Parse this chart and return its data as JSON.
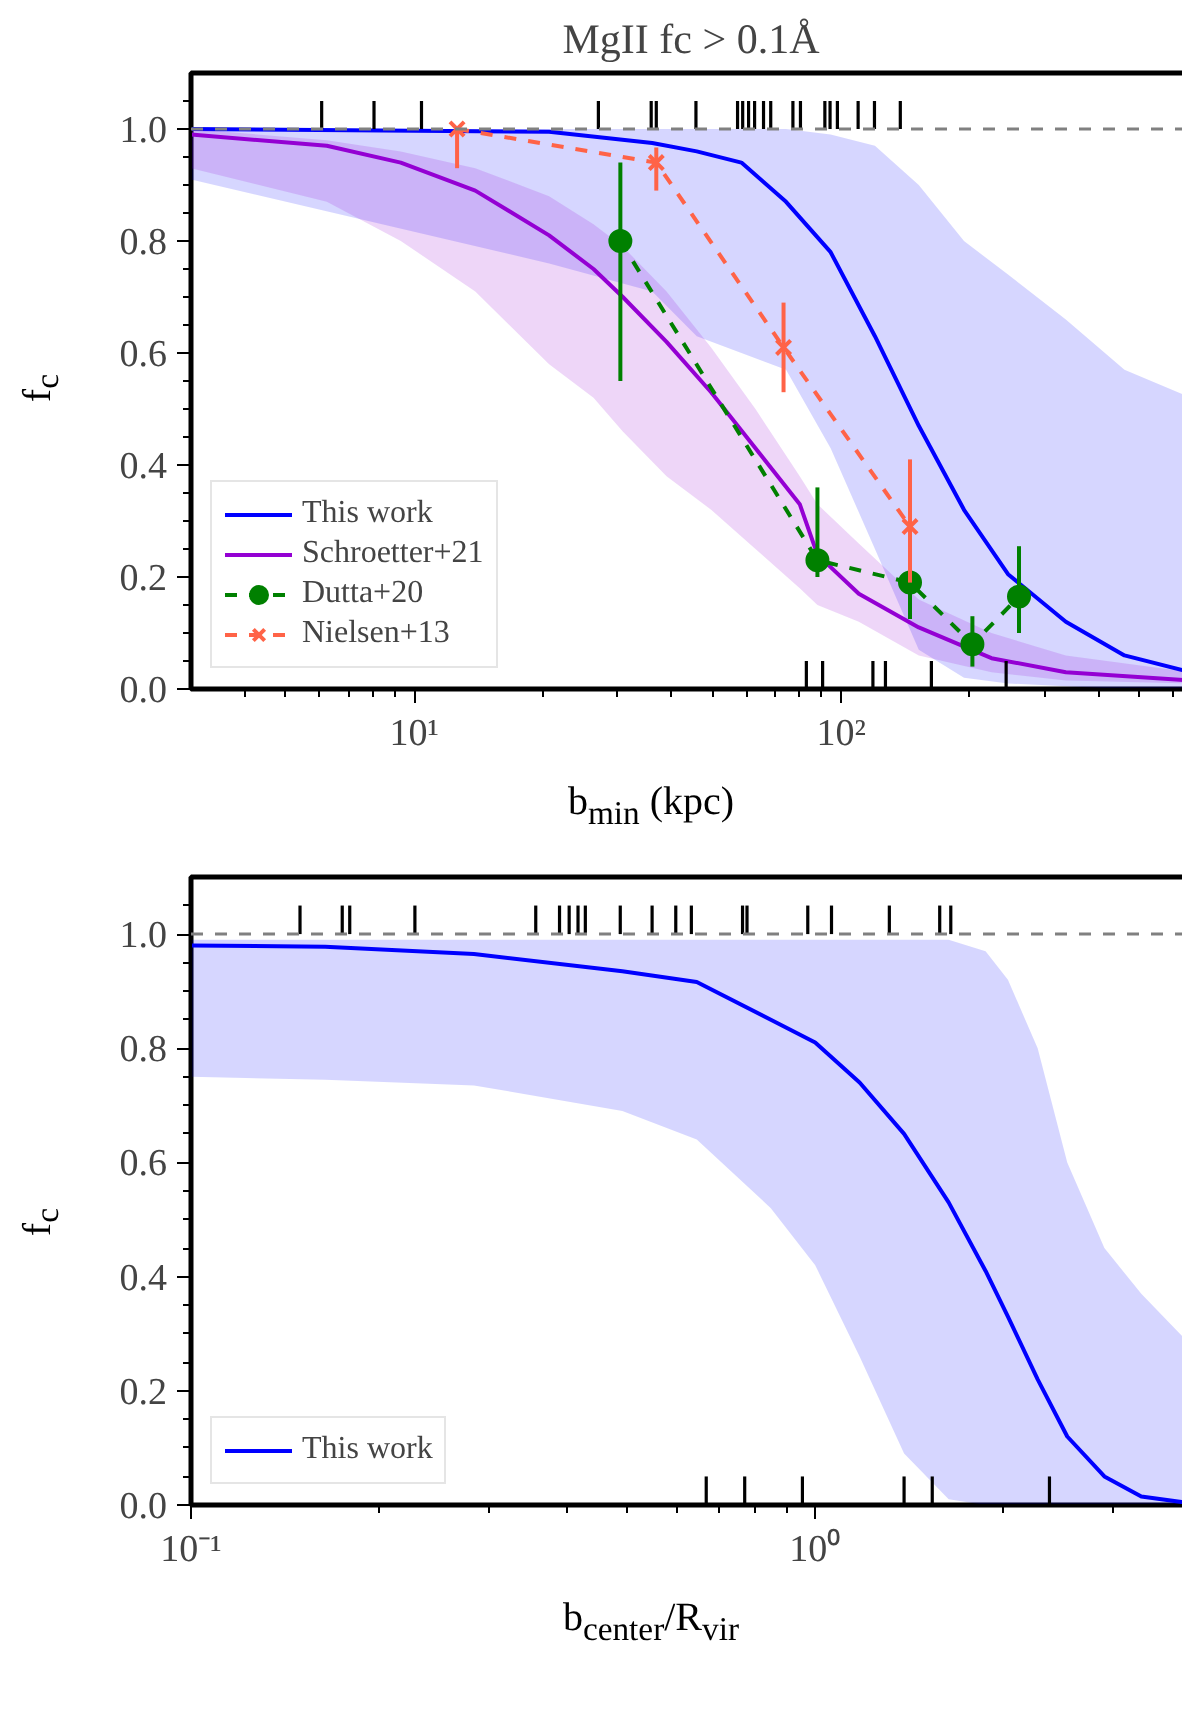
{
  "chart_data": [
    {
      "type": "line",
      "title": "MgII fc > 0.1Å",
      "xlabel": "b$_{min}$ (kpc)",
      "ylabel": "f$_{c}$",
      "log": "x",
      "grid": false,
      "legend": "bottom left",
      "xlim": [
        3,
        660
      ],
      "ylim": [
        0,
        1.1
      ],
      "xticks": [
        {
          "value": 10,
          "label": "10¹"
        },
        {
          "value": 100,
          "label": "10²"
        },
        {
          "value": 4,
          "label": null
        },
        {
          "value": 5,
          "label": null
        },
        {
          "value": 6,
          "label": null
        },
        {
          "value": 7,
          "label": null
        },
        {
          "value": 8,
          "label": null
        },
        {
          "value": 9,
          "label": null
        },
        {
          "value": 20,
          "label": null
        },
        {
          "value": 30,
          "label": null
        },
        {
          "value": 40,
          "label": null
        },
        {
          "value": 50,
          "label": null
        },
        {
          "value": 60,
          "label": null
        },
        {
          "value": 70,
          "label": null
        },
        {
          "value": 80,
          "label": null
        },
        {
          "value": 90,
          "label": null
        },
        {
          "value": 200,
          "label": null
        },
        {
          "value": 300,
          "label": null
        },
        {
          "value": 400,
          "label": null
        },
        {
          "value": 500,
          "label": null
        },
        {
          "value": 600,
          "label": null
        }
      ],
      "yticks": [
        {
          "value": 0,
          "label": "0.0"
        },
        {
          "value": 0.2,
          "label": "0.2"
        },
        {
          "value": 0.4,
          "label": "0.4"
        },
        {
          "value": 0.6,
          "label": "0.6"
        },
        {
          "value": 0.8,
          "label": "0.8"
        },
        {
          "value": 1.0,
          "label": "1.0"
        },
        {
          "value": 0.05,
          "label": null
        },
        {
          "value": 0.1,
          "label": null
        },
        {
          "value": 0.15,
          "label": null
        },
        {
          "value": 0.25,
          "label": null
        },
        {
          "value": 0.3,
          "label": null
        },
        {
          "value": 0.35,
          "label": null
        },
        {
          "value": 0.45,
          "label": null
        },
        {
          "value": 0.5,
          "label": null
        },
        {
          "value": 0.55,
          "label": null
        },
        {
          "value": 0.65,
          "label": null
        },
        {
          "value": 0.7,
          "label": null
        },
        {
          "value": 0.75,
          "label": null
        },
        {
          "value": 0.85,
          "label": null
        },
        {
          "value": 0.9,
          "label": null
        },
        {
          "value": 0.95,
          "label": null
        },
        {
          "value": 1.05,
          "label": null
        }
      ],
      "ref_lines": [
        {
          "axis": "y",
          "value": 1.0,
          "color": "#808080",
          "line_style": "dashed"
        }
      ],
      "series": [
        {
          "name": "This work",
          "color": "#0000ff",
          "x": [
            3,
            20.7,
            36.1,
            45.9,
            58.4,
            74.3,
            94.5,
            120,
            152,
            194,
            246,
            336,
            461,
            660
          ],
          "values": [
            1.0,
            0.995,
            0.975,
            0.96,
            0.94,
            0.87,
            0.78,
            0.63,
            0.47,
            0.32,
            0.205,
            0.12,
            0.06,
            0.03
          ],
          "upper": [
            1.0,
            1.0,
            1.0,
            1.0,
            1.0,
            1.0,
            0.99,
            0.97,
            0.9,
            0.8,
            0.74,
            0.66,
            0.57,
            0.52
          ],
          "lower": [
            0.91,
            0.76,
            0.71,
            0.63,
            0.6,
            0.57,
            0.43,
            0.25,
            0.07,
            0.02,
            0.01,
            0.005,
            0.0,
            0.0
          ]
        },
        {
          "name": "Schroetter+21",
          "color": "#9400d3",
          "x": [
            3,
            6.24,
            9.3,
            13.9,
            20.7,
            26.3,
            30.8,
            39,
            49.6,
            63,
            80,
            88,
            110,
            152,
            225,
            336,
            660
          ],
          "values": [
            0.99,
            0.97,
            0.94,
            0.89,
            0.81,
            0.75,
            0.7,
            0.62,
            0.53,
            0.43,
            0.33,
            0.24,
            0.17,
            0.11,
            0.055,
            0.03,
            0.015
          ],
          "upper": [
            1.0,
            0.98,
            0.96,
            0.93,
            0.88,
            0.83,
            0.79,
            0.71,
            0.61,
            0.5,
            0.38,
            0.33,
            0.26,
            0.16,
            0.1,
            0.06,
            0.03
          ],
          "lower": [
            0.93,
            0.87,
            0.8,
            0.71,
            0.58,
            0.52,
            0.46,
            0.38,
            0.32,
            0.25,
            0.18,
            0.15,
            0.12,
            0.06,
            0.03,
            0.015,
            0.01
          ]
        },
        {
          "name": "Dutta+20",
          "color": "#008000",
          "marker": "circle",
          "line_style": "dashed",
          "x": [
            30.4,
            88,
            145,
            203,
            261
          ],
          "values": [
            0.8,
            0.23,
            0.19,
            0.08,
            0.165
          ],
          "errors": [
            [
              0.55,
              0.94
            ],
            [
              0.2,
              0.36
            ],
            [
              0.125,
              0.305
            ],
            [
              0.04,
              0.13
            ],
            [
              0.1,
              0.255
            ]
          ]
        },
        {
          "name": "Nielsen+13",
          "color": "#ff6347",
          "marker": "cross",
          "line_style": "dashed",
          "x": [
            12.6,
            36.9,
            73.3,
            145
          ],
          "values": [
            1.0,
            0.94,
            0.61,
            0.29
          ],
          "errors": [
            [
              0.93,
              1.0
            ],
            [
              0.89,
              0.967
            ],
            [
              0.53,
              0.69
            ],
            [
              0.19,
              0.41
            ]
          ]
        },
        {
          "type": "bar",
          "color": "#000000",
          "x": [
            6.07,
            8.05,
            10.4,
            27.0,
            35.9,
            36.9,
            45.7,
            57.2,
            58.8,
            60.7,
            62.7,
            65.8,
            68.4,
            77.1,
            80.3,
            91.6,
            94.2,
            98.0,
            109.6,
            119.7,
            137.6
          ],
          "base": [
            1.0,
            1.0,
            1.0,
            1.0,
            1.0,
            1.0,
            1.0,
            1.0,
            1.0,
            1.0,
            1.0,
            1.0,
            1.0,
            1.0,
            1.0,
            1.0,
            1.0,
            1.0,
            1.0,
            1.0,
            1.0
          ],
          "values": [
            0.05,
            0.05,
            0.05,
            0.05,
            0.05,
            0.05,
            0.05,
            0.05,
            0.05,
            0.05,
            0.05,
            0.05,
            0.05,
            0.05,
            0.05,
            0.05,
            0.05,
            0.05,
            0.05,
            0.05,
            0.05
          ]
        },
        {
          "type": "bar",
          "color": "#000000",
          "x": [
            82.9,
            90.5,
            118.7,
            127,
            162.7,
            243.5
          ],
          "values": [
            0.05,
            0.05,
            0.05,
            0.05,
            0.05,
            0.05
          ]
        }
      ]
    },
    {
      "type": "line",
      "xlabel": "b$_{center}$/R$_{vir}$",
      "ylabel": "f$_{c}$",
      "log": "x",
      "grid": false,
      "legend": "bottom left",
      "xlim": [
        0.1,
        4
      ],
      "ylim": [
        0,
        1.1
      ],
      "xticks": [
        {
          "value": 0.1,
          "label": "10⁻¹"
        },
        {
          "value": 1,
          "label": "10⁰"
        },
        {
          "value": 0.2,
          "label": null
        },
        {
          "value": 0.3,
          "label": null
        },
        {
          "value": 0.4,
          "label": null
        },
        {
          "value": 0.5,
          "label": null
        },
        {
          "value": 0.6,
          "label": null
        },
        {
          "value": 0.7,
          "label": null
        },
        {
          "value": 0.8,
          "label": null
        },
        {
          "value": 0.9,
          "label": null
        },
        {
          "value": 2,
          "label": null
        },
        {
          "value": 3,
          "label": null
        },
        {
          "value": 4,
          "label": null
        }
      ],
      "yticks": [
        {
          "value": 0,
          "label": "0.0"
        },
        {
          "value": 0.2,
          "label": "0.2"
        },
        {
          "value": 0.4,
          "label": "0.4"
        },
        {
          "value": 0.6,
          "label": "0.6"
        },
        {
          "value": 0.8,
          "label": "0.8"
        },
        {
          "value": 1.0,
          "label": "1.0"
        },
        {
          "value": 0.05,
          "label": null
        },
        {
          "value": 0.1,
          "label": null
        },
        {
          "value": 0.15,
          "label": null
        },
        {
          "value": 0.25,
          "label": null
        },
        {
          "value": 0.3,
          "label": null
        },
        {
          "value": 0.35,
          "label": null
        },
        {
          "value": 0.45,
          "label": null
        },
        {
          "value": 0.5,
          "label": null
        },
        {
          "value": 0.55,
          "label": null
        },
        {
          "value": 0.65,
          "label": null
        },
        {
          "value": 0.7,
          "label": null
        },
        {
          "value": 0.75,
          "label": null
        },
        {
          "value": 0.85,
          "label": null
        },
        {
          "value": 0.9,
          "label": null
        },
        {
          "value": 0.95,
          "label": null
        },
        {
          "value": 1.05,
          "label": null
        }
      ],
      "ref_lines": [
        {
          "axis": "y",
          "value": 1.0,
          "color": "#808080",
          "line_style": "dashed"
        }
      ],
      "series": [
        {
          "name": "This work",
          "color": "#0000ff",
          "x": [
            0.1,
            0.164,
            0.284,
            0.491,
            0.646,
            0.849,
            1.0,
            1.178,
            1.388,
            1.636,
            1.875,
            2.036,
            2.272,
            2.534,
            2.906,
            3.33,
            4.0
          ],
          "values": [
            0.98,
            0.978,
            0.965,
            0.935,
            0.916,
            0.85,
            0.81,
            0.74,
            0.65,
            0.53,
            0.41,
            0.33,
            0.22,
            0.12,
            0.05,
            0.015,
            0.003
          ],
          "upper": [
            0.99,
            0.99,
            0.99,
            0.99,
            0.99,
            0.99,
            0.99,
            0.99,
            0.99,
            0.99,
            0.97,
            0.92,
            0.8,
            0.6,
            0.45,
            0.37,
            0.28
          ],
          "lower": [
            0.75,
            0.745,
            0.735,
            0.69,
            0.64,
            0.52,
            0.42,
            0.26,
            0.09,
            0.01,
            0.0,
            0.0,
            0.0,
            0.0,
            0.0,
            0.0,
            0.0
          ]
        },
        {
          "type": "bar",
          "color": "#000000",
          "x": [
            0.1495,
            0.1747,
            0.1796,
            0.2284,
            0.3567,
            0.3894,
            0.4035,
            0.4169,
            0.4283,
            0.4872,
            0.5479,
            0.5979,
            0.6333,
            0.7649,
            0.7776,
            0.973,
            1.062,
            1.3146,
            1.583,
            1.649
          ],
          "base": [
            1.0,
            1.0,
            1.0,
            1.0,
            1.0,
            1.0,
            1.0,
            1.0,
            1.0,
            1.0,
            1.0,
            1.0,
            1.0,
            1.0,
            1.0,
            1.0,
            1.0,
            1.0,
            1.0,
            1.0
          ],
          "values": [
            0.05,
            0.05,
            0.05,
            0.05,
            0.05,
            0.05,
            0.05,
            0.05,
            0.05,
            0.05,
            0.05,
            0.05,
            0.05,
            0.05,
            0.05,
            0.05,
            0.05,
            0.05,
            0.05,
            0.05
          ]
        },
        {
          "type": "bar",
          "color": "#000000",
          "x": [
            0.669,
            0.771,
            0.954,
            1.388,
            1.54,
            2.373
          ],
          "values": [
            0.05,
            0.05,
            0.05,
            0.05,
            0.05,
            0.05
          ]
        }
      ]
    }
  ]
}
